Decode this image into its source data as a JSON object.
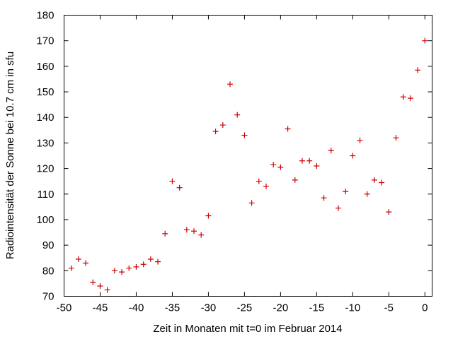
{
  "chart_data": {
    "type": "scatter",
    "xlabel": "Zeit in Monaten mit t=0 im Februar 2014",
    "ylabel": "Radiointensität der Sonne bei 10.7 cm in sfu",
    "xlim": [
      -50,
      1
    ],
    "ylim": [
      70,
      180
    ],
    "x_ticks": [
      "-50",
      "-45",
      "-40",
      "-35",
      "-30",
      "-25",
      "-20",
      "-15",
      "-10",
      "-5",
      "0"
    ],
    "y_ticks": [
      "70",
      "80",
      "90",
      "100",
      "110",
      "120",
      "130",
      "140",
      "150",
      "160",
      "170",
      "180"
    ],
    "grid": false,
    "marker_color": "#cc0000",
    "marker": "plus",
    "series": [
      {
        "x": [
          -49,
          -48,
          -47,
          -46,
          -45,
          -44,
          -43,
          -42,
          -41,
          -40,
          -39,
          -38,
          -37,
          -36,
          -35,
          -34,
          -33,
          -32,
          -31,
          -30,
          -29,
          -28,
          -27,
          -26,
          -25,
          -24,
          -23,
          -22,
          -21,
          -20,
          -19,
          -18,
          -17,
          -16,
          -15,
          -14,
          -13,
          -12,
          -11,
          -10,
          -9,
          -8,
          -7,
          -6,
          -5,
          -4,
          -3,
          -2,
          -1,
          0
        ],
        "y": [
          81,
          84.5,
          83,
          75.5,
          74,
          72.5,
          80,
          79.5,
          81,
          81.5,
          82.5,
          84.5,
          83.5,
          94.5,
          115,
          112.5,
          96,
          95.5,
          94,
          101.5,
          134.5,
          137,
          153,
          141,
          133,
          106.5,
          115,
          113,
          121.5,
          120.5,
          135.5,
          115.5,
          123,
          123,
          121,
          108.5,
          127,
          104.5,
          111,
          125,
          131,
          110,
          115.5,
          114.5,
          103,
          132,
          148,
          147.5,
          158.5,
          170
        ]
      }
    ]
  }
}
